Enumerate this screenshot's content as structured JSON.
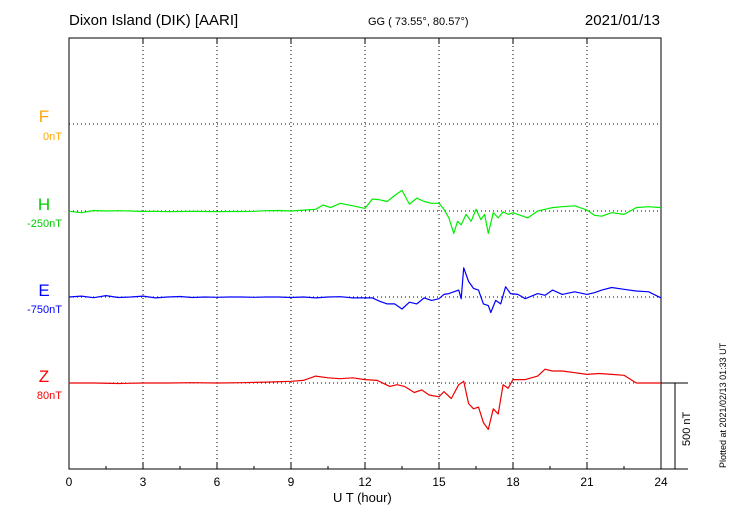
{
  "header": {
    "station": "Dixon Island (DIK)  [AARI]",
    "coords": "GG ( 73.55°,  80.57°)",
    "date": "2021/01/13"
  },
  "plotted_stamp": "Plotted at 2021/02/13 01:33 UT",
  "scale_label": "500 nT",
  "chart_data": {
    "type": "line",
    "xlabel": "U T (hour)",
    "xlim": [
      0,
      24
    ],
    "xticks": [
      "0",
      "3",
      "6",
      "9",
      "12",
      "15",
      "18",
      "21",
      "24"
    ],
    "grid": true,
    "scale_bar_nT": 500,
    "series": [
      {
        "name": "F",
        "baseline": "0nT",
        "color": "#ffa500",
        "x": [],
        "y": []
      },
      {
        "name": "H",
        "baseline": "-250nT",
        "color": "#00ee00",
        "x": [
          0.0,
          0.5,
          1.0,
          1.5,
          2.0,
          2.5,
          3.0,
          3.5,
          4.0,
          4.5,
          5.0,
          5.5,
          6.0,
          6.5,
          7.0,
          7.5,
          8.0,
          8.5,
          9.0,
          9.5,
          10.0,
          10.3,
          10.6,
          11.0,
          11.5,
          12.0,
          12.3,
          12.6,
          12.9,
          13.2,
          13.5,
          13.8,
          14.1,
          14.4,
          14.7,
          15.0,
          15.2,
          15.4,
          15.6,
          15.75,
          15.9,
          16.1,
          16.3,
          16.5,
          16.7,
          16.85,
          17.0,
          17.2,
          17.4,
          17.6,
          17.8,
          18.0,
          18.3,
          18.6,
          19.0,
          19.3,
          19.6,
          20.0,
          20.5,
          21.0,
          21.3,
          21.6,
          22.0,
          22.5,
          23.0,
          23.5,
          24.0
        ],
        "y": [
          -2,
          -10,
          3,
          0,
          2,
          0,
          -3,
          -2,
          -4,
          -3,
          -2,
          -3,
          -4,
          -3,
          -3,
          -2,
          2,
          3,
          0,
          5,
          10,
          35,
          20,
          45,
          30,
          15,
          70,
          65,
          55,
          90,
          120,
          40,
          75,
          55,
          45,
          45,
          10,
          -40,
          -130,
          -60,
          -80,
          -20,
          -60,
          10,
          -50,
          -20,
          -130,
          -10,
          -40,
          -5,
          -20,
          -10,
          -25,
          -40,
          0,
          10,
          20,
          25,
          30,
          5,
          -25,
          -30,
          -10,
          -20,
          20,
          25,
          20
        ]
      },
      {
        "name": "E",
        "baseline": "-750nT",
        "color": "#0000ff",
        "x": [
          0.0,
          0.5,
          1.0,
          1.5,
          2.0,
          2.5,
          3.0,
          3.5,
          4.0,
          4.5,
          5.0,
          5.5,
          6.0,
          6.5,
          7.0,
          7.5,
          8.0,
          8.5,
          9.0,
          9.5,
          10.0,
          10.5,
          11.0,
          11.5,
          12.0,
          12.3,
          12.6,
          12.9,
          13.2,
          13.5,
          13.8,
          14.1,
          14.4,
          14.7,
          15.0,
          15.2,
          15.4,
          15.6,
          15.8,
          15.9,
          16.0,
          16.2,
          16.4,
          16.6,
          16.8,
          17.0,
          17.1,
          17.3,
          17.5,
          17.7,
          17.9,
          18.2,
          18.5,
          19.0,
          19.3,
          19.6,
          20.0,
          20.5,
          21.0,
          21.3,
          21.6,
          22.0,
          22.5,
          23.0,
          23.5,
          24.0
        ],
        "y": [
          0,
          5,
          -4,
          8,
          -3,
          0,
          5,
          -5,
          0,
          3,
          -3,
          0,
          -2,
          0,
          0,
          -2,
          0,
          0,
          -3,
          0,
          -5,
          0,
          2,
          -5,
          -5,
          -5,
          -25,
          -40,
          -40,
          -70,
          -30,
          -40,
          -5,
          -20,
          -10,
          15,
          20,
          30,
          40,
          -10,
          170,
          90,
          50,
          40,
          -40,
          -50,
          -90,
          -20,
          -40,
          60,
          20,
          15,
          -10,
          20,
          10,
          40,
          15,
          30,
          15,
          25,
          40,
          55,
          45,
          35,
          30,
          -5
        ]
      },
      {
        "name": "Z",
        "baseline": "80nT",
        "color": "#ff0000",
        "x": [
          0.0,
          1.0,
          2.0,
          3.0,
          4.0,
          5.0,
          6.0,
          7.0,
          8.0,
          9.0,
          9.5,
          10.0,
          10.5,
          11.0,
          11.5,
          12.0,
          12.5,
          13.0,
          13.3,
          13.6,
          14.0,
          14.3,
          14.6,
          15.0,
          15.2,
          15.5,
          15.8,
          16.0,
          16.2,
          16.4,
          16.6,
          16.8,
          17.0,
          17.2,
          17.4,
          17.6,
          17.8,
          18.0,
          18.5,
          19.0,
          19.3,
          19.6,
          20.0,
          20.5,
          21.0,
          21.5,
          22.0,
          22.5,
          23.0,
          23.5,
          24.0
        ],
        "y": [
          0,
          0,
          -3,
          0,
          0,
          2,
          0,
          2,
          5,
          10,
          15,
          40,
          30,
          25,
          30,
          20,
          15,
          -20,
          -10,
          -20,
          -55,
          -40,
          -70,
          -80,
          -50,
          -90,
          -10,
          10,
          -120,
          -150,
          -140,
          -230,
          -270,
          -150,
          -180,
          -10,
          -30,
          20,
          20,
          40,
          80,
          70,
          70,
          60,
          50,
          55,
          50,
          45,
          0,
          0,
          0
        ]
      }
    ]
  }
}
